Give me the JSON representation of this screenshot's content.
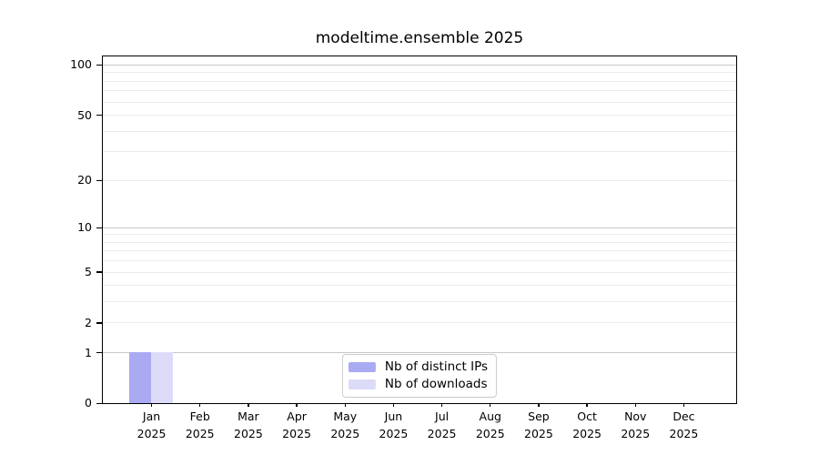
{
  "chart_data": {
    "type": "bar",
    "title": "modeltime.ensemble 2025",
    "x": {
      "months": [
        "Jan",
        "Feb",
        "Mar",
        "Apr",
        "May",
        "Jun",
        "Jul",
        "Aug",
        "Sep",
        "Oct",
        "Nov",
        "Dec"
      ],
      "year": "2025"
    },
    "categories": [
      "Jan 2025",
      "Feb 2025",
      "Mar 2025",
      "Apr 2025",
      "May 2025",
      "Jun 2025",
      "Jul 2025",
      "Aug 2025",
      "Sep 2025",
      "Oct 2025",
      "Nov 2025",
      "Dec 2025"
    ],
    "series": [
      {
        "name": "Nb of distinct IPs",
        "color": "#aaaaf2",
        "values": [
          1,
          0,
          0,
          0,
          0,
          0,
          0,
          0,
          0,
          0,
          0,
          0
        ]
      },
      {
        "name": "Nb of downloads",
        "color": "#dcdcf8",
        "values": [
          1,
          0,
          0,
          0,
          0,
          0,
          0,
          0,
          0,
          0,
          0,
          0
        ]
      }
    ],
    "y_axis": {
      "scale": "log1p",
      "tick_labels": [
        0,
        1,
        2,
        5,
        10,
        20,
        50,
        100
      ],
      "major_gridlines": [
        1,
        10,
        100
      ],
      "minor_gridlines": [
        2,
        3,
        4,
        5,
        6,
        7,
        8,
        9,
        20,
        30,
        40,
        50,
        60,
        70,
        80,
        90
      ],
      "ylim": [
        0,
        112
      ]
    },
    "legend": {
      "position": "lower center"
    },
    "grid": {
      "major_color": "#c8c8c8",
      "minor_color": "#ebebeb"
    }
  }
}
